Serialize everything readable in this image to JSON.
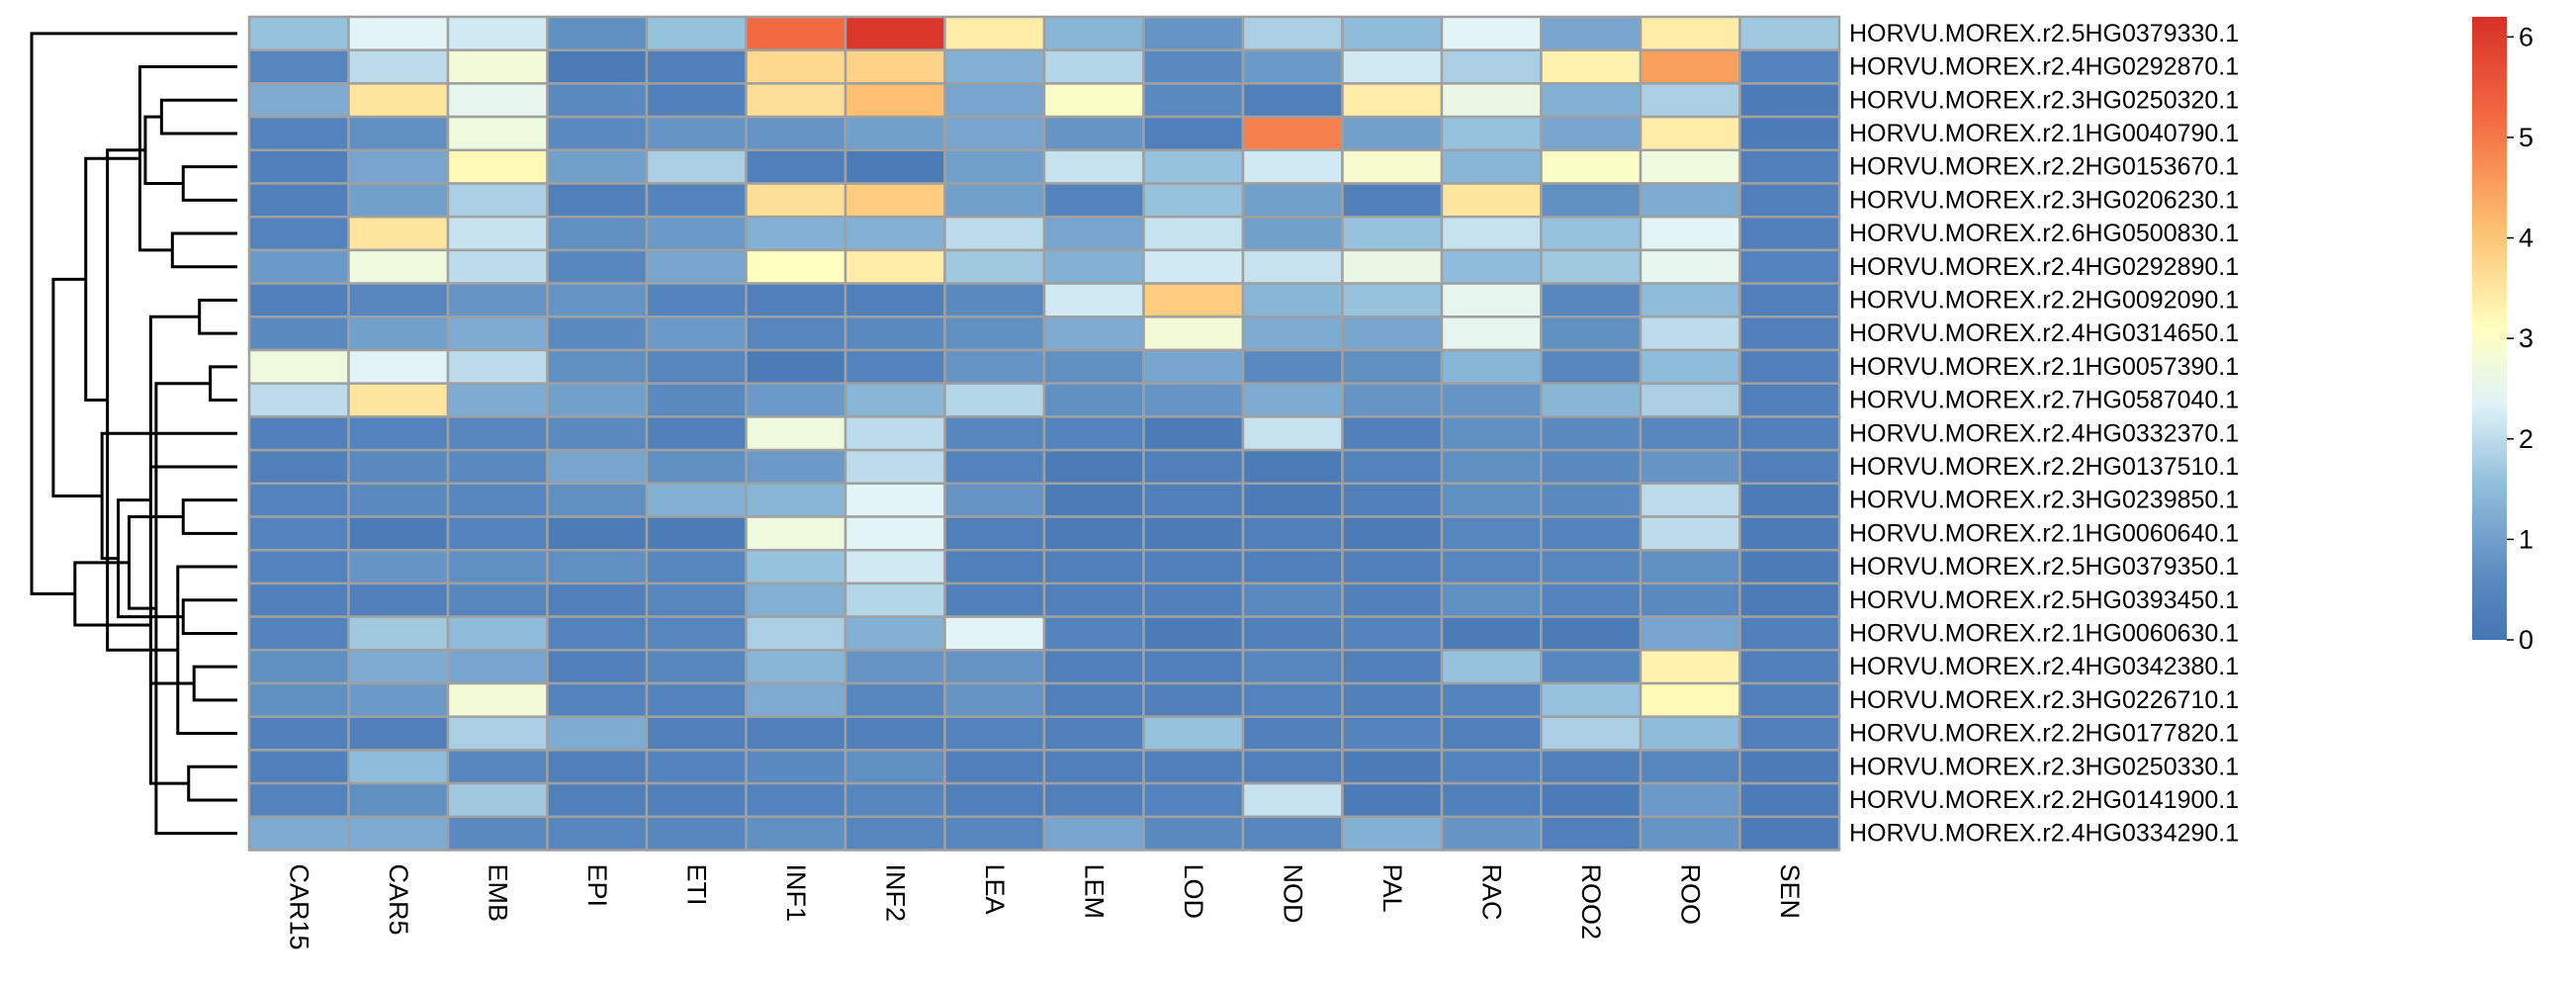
{
  "chart_data": {
    "type": "heatmap",
    "columns": [
      "CAR15",
      "CAR5",
      "EMB",
      "EPI",
      "ETI",
      "INF1",
      "INF2",
      "LEA",
      "LEM",
      "LOD",
      "NOD",
      "PAL",
      "RAC",
      "ROO2",
      "ROO",
      "SEN"
    ],
    "rows": [
      "HORVU.MOREX.r2.5HG0379330.1",
      "HORVU.MOREX.r2.4HG0292870.1",
      "HORVU.MOREX.r2.3HG0250320.1",
      "HORVU.MOREX.r2.1HG0040790.1",
      "HORVU.MOREX.r2.2HG0153670.1",
      "HORVU.MOREX.r2.3HG0206230.1",
      "HORVU.MOREX.r2.6HG0500830.1",
      "HORVU.MOREX.r2.4HG0292890.1",
      "HORVU.MOREX.r2.2HG0092090.1",
      "HORVU.MOREX.r2.4HG0314650.1",
      "HORVU.MOREX.r2.1HG0057390.1",
      "HORVU.MOREX.r2.7HG0587040.1",
      "HORVU.MOREX.r2.4HG0332370.1",
      "HORVU.MOREX.r2.2HG0137510.1",
      "HORVU.MOREX.r2.3HG0239850.1",
      "HORVU.MOREX.r2.1HG0060640.1",
      "HORVU.MOREX.r2.5HG0379350.1",
      "HORVU.MOREX.r2.5HG0393450.1",
      "HORVU.MOREX.r2.1HG0060630.1",
      "HORVU.MOREX.r2.4HG0342380.1",
      "HORVU.MOREX.r2.3HG0226710.1",
      "HORVU.MOREX.r2.2HG0177820.1",
      "HORVU.MOREX.r2.3HG0250330.1",
      "HORVU.MOREX.r2.2HG0141900.1",
      "HORVU.MOREX.r2.4HG0334290.1"
    ],
    "values": [
      [
        1.6,
        2.4,
        2.2,
        0.7,
        1.6,
        5.2,
        6.1,
        3.4,
        1.4,
        0.8,
        1.8,
        1.5,
        2.4,
        1.1,
        3.4,
        1.7
      ],
      [
        0.5,
        2.0,
        2.8,
        0.2,
        0.3,
        3.7,
        3.8,
        1.3,
        1.9,
        0.6,
        0.9,
        2.2,
        1.8,
        3.3,
        4.5,
        0.4
      ],
      [
        1.2,
        3.5,
        2.5,
        0.6,
        0.3,
        3.6,
        4.1,
        1.1,
        3.0,
        0.6,
        0.3,
        3.4,
        2.6,
        1.3,
        1.8,
        0.2
      ],
      [
        0.4,
        0.7,
        2.7,
        0.6,
        0.8,
        0.8,
        1.0,
        1.1,
        0.8,
        0.3,
        4.9,
        1.0,
        1.6,
        1.1,
        3.4,
        0.2
      ],
      [
        0.3,
        1.1,
        3.2,
        1.0,
        1.8,
        0.3,
        0.2,
        1.0,
        2.1,
        1.6,
        2.2,
        2.9,
        1.4,
        3.0,
        2.7,
        0.3
      ],
      [
        0.3,
        1.0,
        1.8,
        0.3,
        0.4,
        3.6,
        3.9,
        1.0,
        0.4,
        1.6,
        1.0,
        0.3,
        3.5,
        0.7,
        1.2,
        0.3
      ],
      [
        0.4,
        3.5,
        2.1,
        0.7,
        0.9,
        1.3,
        1.3,
        2.0,
        1.1,
        2.1,
        1.0,
        1.6,
        2.1,
        1.6,
        2.4,
        0.3
      ],
      [
        0.9,
        2.7,
        2.0,
        0.5,
        1.1,
        3.1,
        3.4,
        1.7,
        1.3,
        2.2,
        2.1,
        2.6,
        1.5,
        1.7,
        2.5,
        0.4
      ],
      [
        0.3,
        0.5,
        0.8,
        0.8,
        0.4,
        0.3,
        0.3,
        0.6,
        2.2,
        3.9,
        1.4,
        1.6,
        2.5,
        0.5,
        1.5,
        0.3
      ],
      [
        0.6,
        1.0,
        1.2,
        0.6,
        0.9,
        0.5,
        0.6,
        0.7,
        1.2,
        2.8,
        1.2,
        1.1,
        2.5,
        0.7,
        2.0,
        0.3
      ],
      [
        2.7,
        2.4,
        2.0,
        0.7,
        0.5,
        0.2,
        0.4,
        0.8,
        0.7,
        1.1,
        0.6,
        0.7,
        1.4,
        0.5,
        1.5,
        0.3
      ],
      [
        2.0,
        3.5,
        1.2,
        1.0,
        0.6,
        0.9,
        1.4,
        1.9,
        0.7,
        0.8,
        1.2,
        0.8,
        0.8,
        1.4,
        1.8,
        0.3
      ],
      [
        0.3,
        0.4,
        0.5,
        0.6,
        0.3,
        2.7,
        2.0,
        0.5,
        0.4,
        0.2,
        2.1,
        0.3,
        0.7,
        0.6,
        0.5,
        0.3
      ],
      [
        0.3,
        0.6,
        0.6,
        1.1,
        0.7,
        0.9,
        2.0,
        0.4,
        0.2,
        0.3,
        0.2,
        0.4,
        0.7,
        0.6,
        0.8,
        0.3
      ],
      [
        0.4,
        0.6,
        0.5,
        0.7,
        1.3,
        1.4,
        2.4,
        0.8,
        0.2,
        0.3,
        0.2,
        0.3,
        0.7,
        0.6,
        2.0,
        0.2
      ],
      [
        0.4,
        0.2,
        0.4,
        0.2,
        0.2,
        2.7,
        2.4,
        0.3,
        0.2,
        0.2,
        0.3,
        0.2,
        0.5,
        0.4,
        2.0,
        0.2
      ],
      [
        0.4,
        0.8,
        0.7,
        0.7,
        0.5,
        1.6,
        2.2,
        0.3,
        0.3,
        0.3,
        0.3,
        0.3,
        0.5,
        0.5,
        0.7,
        0.2
      ],
      [
        0.3,
        0.3,
        0.5,
        0.3,
        0.5,
        1.3,
        1.9,
        0.3,
        0.3,
        0.3,
        0.6,
        0.3,
        0.7,
        0.4,
        0.6,
        0.2
      ],
      [
        0.4,
        1.7,
        1.5,
        0.4,
        0.5,
        1.8,
        1.3,
        2.4,
        0.4,
        0.2,
        0.3,
        0.4,
        0.2,
        0.2,
        1.1,
        0.3
      ],
      [
        0.7,
        1.2,
        1.1,
        0.3,
        0.5,
        1.4,
        0.8,
        0.8,
        0.3,
        0.3,
        0.5,
        0.3,
        1.6,
        0.5,
        3.3,
        0.3
      ],
      [
        0.7,
        0.9,
        2.8,
        0.4,
        0.4,
        1.2,
        0.5,
        0.8,
        0.3,
        0.3,
        0.4,
        0.3,
        0.4,
        1.6,
        3.2,
        0.3
      ],
      [
        0.3,
        0.3,
        1.8,
        1.2,
        0.3,
        0.3,
        0.3,
        0.4,
        0.3,
        1.6,
        0.3,
        0.4,
        0.3,
        1.8,
        1.5,
        0.3
      ],
      [
        0.3,
        1.5,
        0.5,
        0.3,
        0.4,
        0.6,
        0.7,
        0.3,
        0.3,
        0.3,
        0.3,
        0.2,
        0.4,
        0.3,
        0.5,
        0.2
      ],
      [
        0.4,
        0.7,
        1.7,
        0.3,
        0.3,
        0.4,
        0.5,
        0.3,
        0.3,
        0.4,
        2.1,
        0.2,
        0.3,
        0.2,
        0.9,
        0.2
      ],
      [
        1.2,
        1.2,
        0.6,
        0.5,
        0.5,
        0.7,
        0.5,
        0.5,
        1.1,
        0.6,
        0.5,
        1.3,
        0.8,
        0.3,
        0.8,
        0.2
      ]
    ],
    "scale": {
      "min": 0,
      "max": 6.2,
      "ticks": [
        0,
        1,
        2,
        3,
        4,
        5,
        6
      ]
    },
    "colors": {
      "low": "#4575b4",
      "mid": "#ffffbf",
      "high": "#d73027",
      "cell_border": "#a0a0a0"
    },
    "legend_placement": "right",
    "row_dendrogram": "left",
    "dendrogram_links": [
      [
        11,
        10,
        0.5
      ],
      [
        8,
        9,
        0.7
      ],
      [
        20,
        19,
        0.8
      ],
      [
        23,
        22,
        0.9
      ],
      [
        5,
        4,
        1.0
      ],
      [
        15,
        14,
        1.0
      ],
      [
        18,
        17,
        1.0
      ],
      [
        21,
        16,
        1.1
      ],
      [
        7,
        6,
        1.2
      ],
      [
        3,
        2,
        1.4
      ],
      [
        25,
        24,
        1.5
      ],
      [
        27,
        26,
        1.6
      ],
      [
        28,
        13,
        1.6
      ],
      [
        34,
        29,
        1.7
      ],
      [
        33,
        1,
        1.8
      ],
      [
        35,
        30,
        2.0
      ],
      [
        36,
        31,
        2.2
      ],
      [
        38,
        32,
        2.4
      ],
      [
        41,
        12,
        2.5
      ],
      [
        42,
        39,
        2.8
      ],
      [
        40,
        37,
        3.0
      ],
      [
        44,
        43,
        3.4
      ],
      [
        45,
        0,
        3.8
      ]
    ]
  }
}
